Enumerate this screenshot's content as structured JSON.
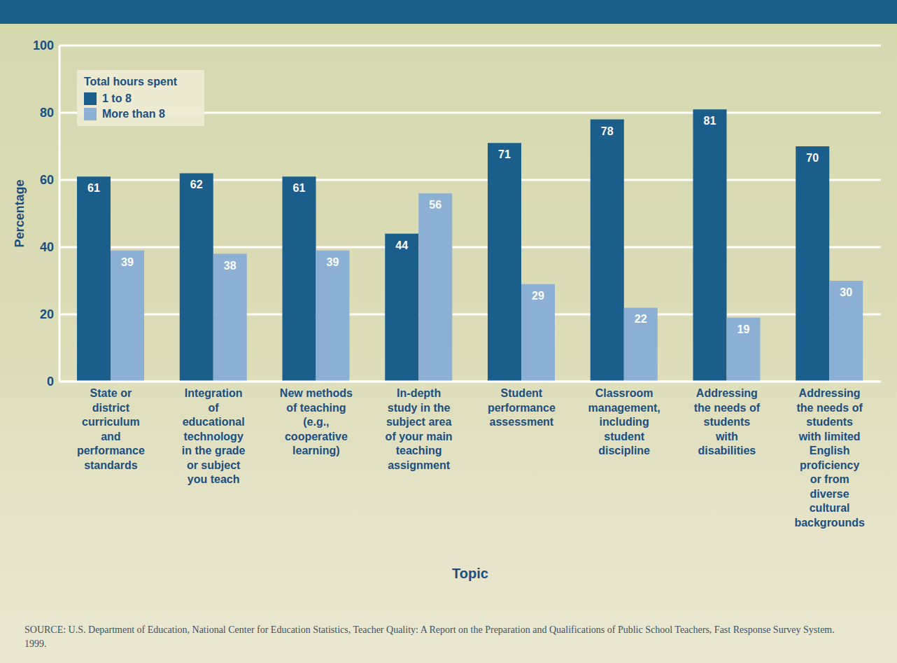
{
  "chart_data": {
    "type": "bar",
    "x_label": "Topic",
    "y_label": "Percentage",
    "legend_title": "Total hours spent",
    "categories": [
      "State or district curriculum and performance standards",
      "Integration of educational technology in the grade or subject you teach",
      "New methods of teaching (e.g., cooperative learning)",
      "In-depth study in the subject area of your main teaching assignment",
      "Student performance assessment",
      "Classroom management, including student discipline",
      "Addressing the needs of students with disabilities",
      "Addressing the needs of students with limited English proficiency or from diverse cultural backgrounds"
    ],
    "series": [
      {
        "name": "1 to 8",
        "color": "#1b5e8c",
        "values": [
          61,
          62,
          61,
          44,
          71,
          78,
          81,
          70
        ]
      },
      {
        "name": "More than 8",
        "color": "#8cb0d4",
        "values": [
          39,
          38,
          39,
          56,
          29,
          22,
          19,
          30
        ]
      }
    ],
    "ylim": [
      0,
      100
    ],
    "yticks": [
      0,
      20,
      40,
      60,
      80,
      100
    ],
    "grid": true,
    "legend": "top-left",
    "data_labels": true,
    "source": "SOURCE: U.S. Department of Education, National Center for Education Statistics, Teacher Quality: A Report on the Preparation and Qualifications of Public School Teachers, Fast Response Survey System. 1999."
  }
}
